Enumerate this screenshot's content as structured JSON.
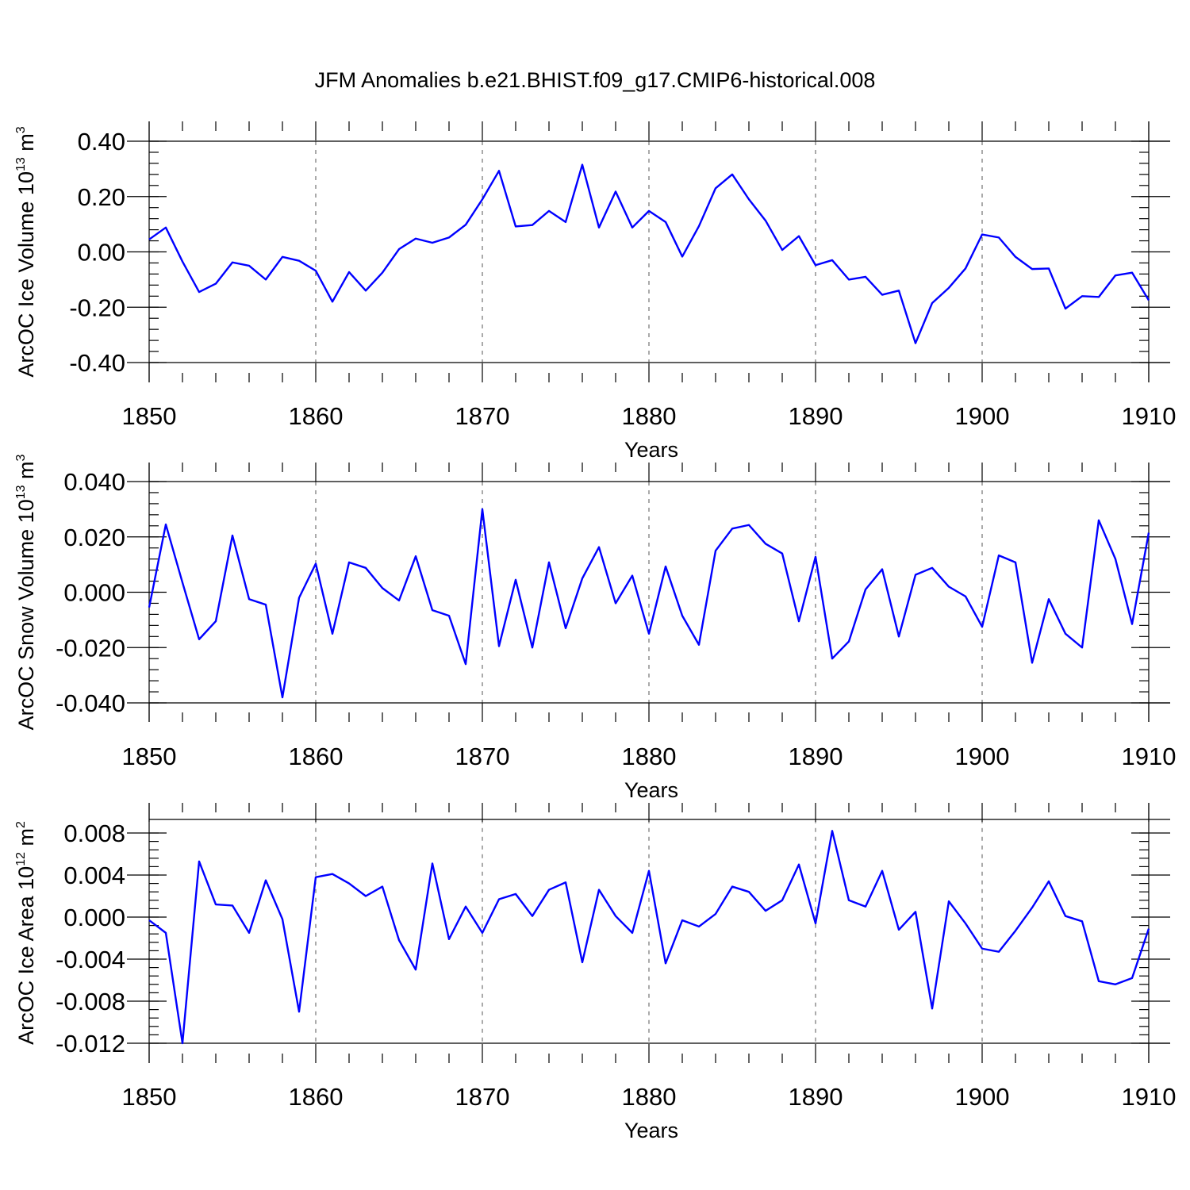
{
  "figure_title": "JFM Anomalies b.e21.BHIST.f09_g17.CMIP6-historical.008",
  "colors": {
    "line": "#0000ff",
    "axes": "#000000",
    "grid": "#555555"
  },
  "chart_data": [
    {
      "type": "line",
      "ylabel": "ArcOC Ice Volume 10",
      "ylabel_sup_exp": "13",
      "ylabel_unit": " m",
      "ylabel_sup_unit": "3",
      "xlabel": "Years",
      "xlim": [
        1850,
        1910
      ],
      "ylim": [
        -0.42,
        0.4
      ],
      "xticks": [
        1850,
        1860,
        1870,
        1880,
        1890,
        1900,
        1910
      ],
      "xtick_labels": [
        "1850",
        "1860",
        "1870",
        "1880",
        "1890",
        "1900",
        "1910"
      ],
      "yticks": [
        0.4,
        0.2,
        0.0,
        -0.2,
        -0.4
      ],
      "ytick_labels": [
        "0.40",
        "0.20",
        "0.00",
        "-0.20",
        "-0.40"
      ],
      "grid": "dashed vertical at labeled years",
      "x_start": 1850,
      "values": [
        0.045,
        0.088,
        -0.035,
        -0.145,
        -0.115,
        -0.038,
        -0.05,
        -0.1,
        -0.018,
        -0.032,
        -0.068,
        -0.18,
        -0.073,
        -0.14,
        -0.075,
        0.01,
        0.048,
        0.033,
        0.052,
        0.098,
        0.19,
        0.293,
        0.092,
        0.097,
        0.148,
        0.108,
        0.315,
        0.088,
        0.218,
        0.088,
        0.148,
        0.108,
        -0.017,
        0.093,
        0.23,
        0.28,
        0.19,
        0.113,
        0.007,
        0.057,
        -0.048,
        -0.03,
        -0.1,
        -0.09,
        -0.155,
        -0.14,
        -0.33,
        -0.185,
        -0.13,
        -0.06,
        0.063,
        0.052,
        -0.018,
        -0.062,
        -0.06,
        -0.205,
        -0.16,
        -0.163,
        -0.085,
        -0.075,
        -0.175
      ]
    },
    {
      "type": "line",
      "ylabel": "ArcOC Snow Volume 10",
      "ylabel_sup_exp": "13",
      "ylabel_unit": " m",
      "ylabel_sup_unit": "3",
      "xlabel": "Years",
      "xlim": [
        1850,
        1910
      ],
      "ylim": [
        -0.04,
        0.04
      ],
      "xticks": [
        1850,
        1860,
        1870,
        1880,
        1890,
        1900,
        1910
      ],
      "xtick_labels": [
        "1850",
        "1860",
        "1870",
        "1880",
        "1890",
        "1900",
        "1910"
      ],
      "yticks": [
        0.04,
        0.02,
        0.0,
        -0.02,
        -0.04
      ],
      "ytick_labels": [
        "0.040",
        "0.020",
        "0.000",
        "-0.020",
        "-0.040"
      ],
      "grid": "dashed vertical at labeled years",
      "x_start": 1850,
      "values": [
        -0.0055,
        0.0245,
        0.0035,
        -0.017,
        -0.0105,
        0.0205,
        -0.0025,
        -0.0045,
        -0.038,
        -0.002,
        0.0103,
        -0.015,
        0.0108,
        0.0088,
        0.0015,
        -0.003,
        0.013,
        -0.0065,
        -0.0085,
        -0.026,
        0.03,
        -0.0195,
        0.0045,
        -0.02,
        0.0108,
        -0.013,
        0.005,
        0.0163,
        -0.004,
        0.006,
        -0.015,
        0.0093,
        -0.0085,
        -0.019,
        0.015,
        0.023,
        0.0243,
        0.0175,
        0.014,
        -0.0105,
        0.0128,
        -0.024,
        -0.0178,
        0.001,
        0.0083,
        -0.016,
        0.0063,
        0.0088,
        0.002,
        -0.0015,
        -0.0125,
        0.0133,
        0.0108,
        -0.0255,
        -0.0025,
        -0.015,
        -0.02,
        0.026,
        0.012,
        -0.0115,
        0.0215
      ]
    },
    {
      "type": "line",
      "ylabel": "ArcOC Ice Area 10",
      "ylabel_sup_exp": "12",
      "ylabel_unit": " m",
      "ylabel_sup_unit": "2",
      "xlabel": "Years",
      "xlim": [
        1850,
        1910
      ],
      "ylim": [
        -0.012,
        0.009
      ],
      "xticks": [
        1850,
        1860,
        1870,
        1880,
        1890,
        1900,
        1910
      ],
      "xtick_labels": [
        "1850",
        "1860",
        "1870",
        "1880",
        "1890",
        "1900",
        "1910"
      ],
      "yticks": [
        0.008,
        0.004,
        0.0,
        -0.004,
        -0.008,
        -0.012
      ],
      "ytick_labels": [
        "0.008",
        "0.004",
        "0.000",
        "-0.004",
        "-0.008",
        "-0.012"
      ],
      "grid": "dashed vertical at labeled years",
      "x_start": 1850,
      "values": [
        -0.0003,
        -0.0015,
        -0.012,
        0.0053,
        0.0012,
        0.0011,
        -0.0015,
        0.0035,
        -0.0002,
        -0.009,
        0.0038,
        0.0041,
        0.0032,
        0.002,
        0.0029,
        -0.0022,
        -0.005,
        0.0051,
        -0.0021,
        0.001,
        -0.0015,
        0.0017,
        0.0022,
        0.0001,
        0.0026,
        0.0033,
        -0.0043,
        0.0026,
        0.0001,
        -0.0015,
        0.0044,
        -0.0044,
        -0.0003,
        -0.0009,
        0.0003,
        0.0029,
        0.0024,
        0.0006,
        0.0016,
        0.005,
        -0.0006,
        0.0082,
        0.0016,
        0.001,
        0.0044,
        -0.0012,
        0.0005,
        -0.0087,
        0.0015,
        -0.0006,
        -0.003,
        -0.0033,
        -0.0013,
        0.0009,
        0.0034,
        0.0001,
        -0.0004,
        -0.0061,
        -0.0064,
        -0.0058,
        -0.0011
      ]
    }
  ]
}
